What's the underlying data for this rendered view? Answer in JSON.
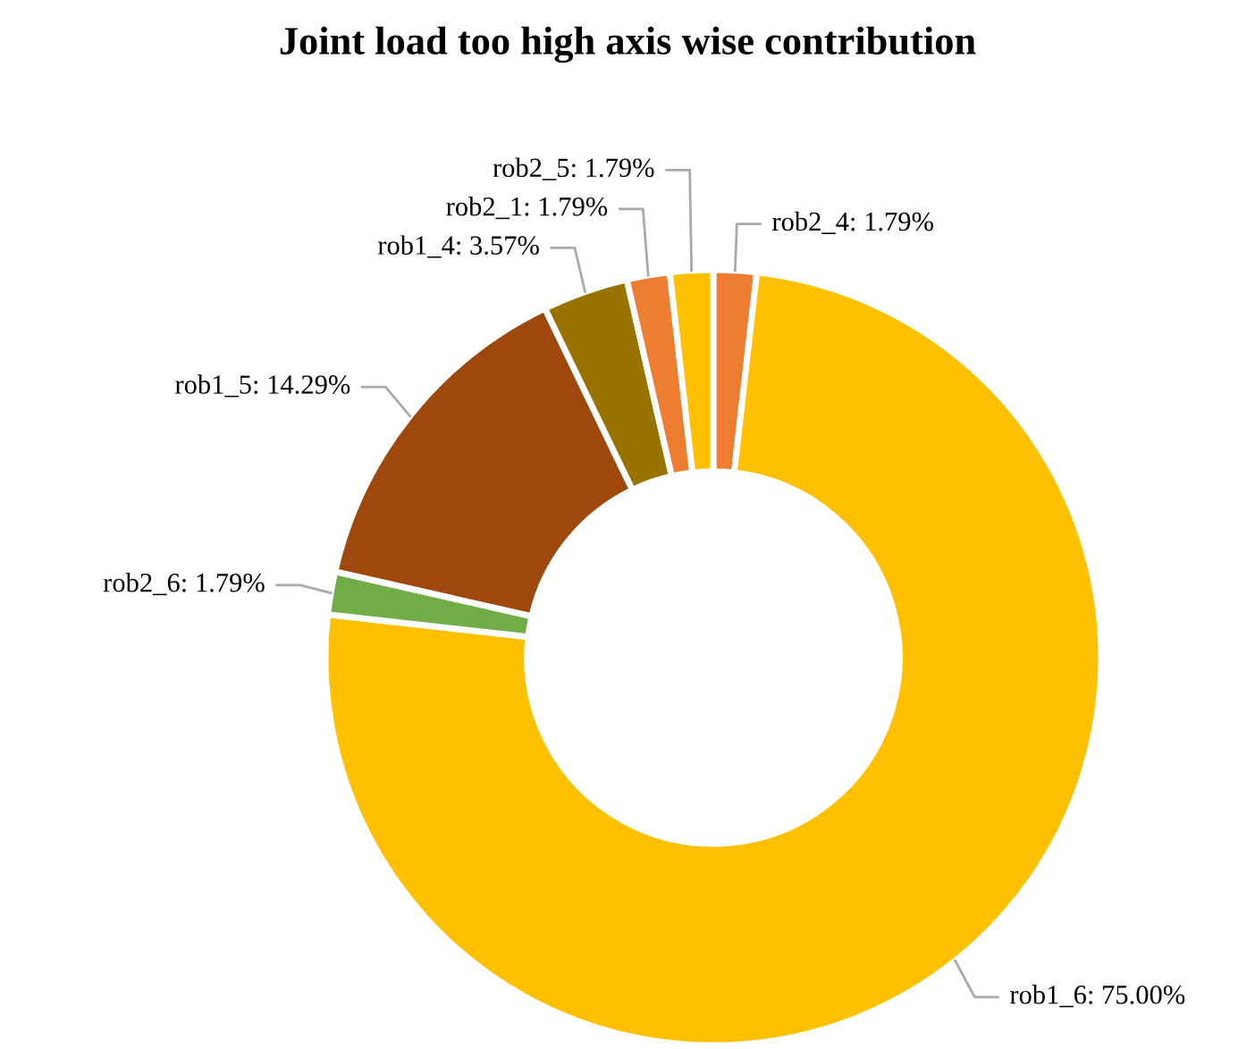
{
  "chart_data": {
    "type": "donut",
    "title": "Joint load too high axis wise contribution",
    "categories": [
      "rob2_4",
      "rob1_6",
      "rob2_6",
      "rob1_5",
      "rob1_4",
      "rob2_1",
      "rob2_5"
    ],
    "values": [
      1.79,
      75.0,
      1.79,
      14.29,
      3.57,
      1.79,
      1.79
    ],
    "value_labels": [
      "1.79%",
      "75.00%",
      "1.79%",
      "14.29%",
      "3.57%",
      "1.79%",
      "1.79%"
    ],
    "colors": [
      "#ed7d31",
      "#ffc000",
      "#70ad47",
      "#9e480e",
      "#997300",
      "#ed7d31",
      "#ffc000"
    ]
  }
}
